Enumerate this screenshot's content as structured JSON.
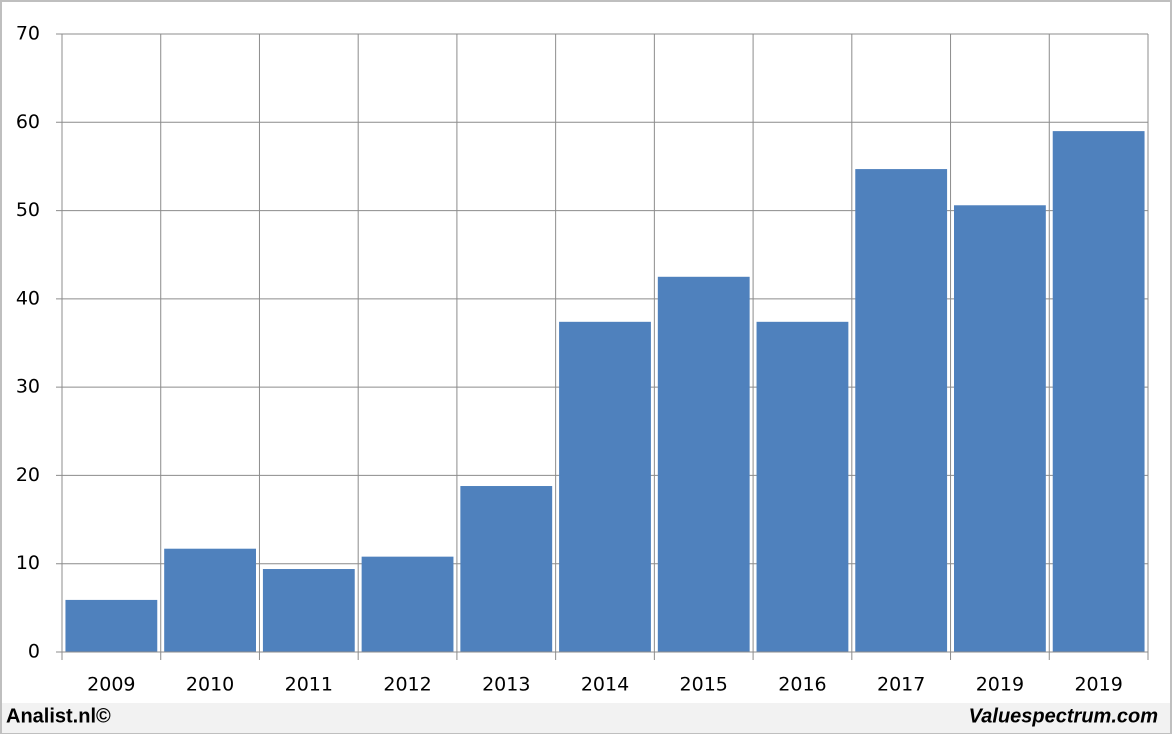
{
  "chart_data": {
    "type": "bar",
    "categories": [
      "2009",
      "2010",
      "2011",
      "2012",
      "2013",
      "2014",
      "2015",
      "2016",
      "2017",
      "2019",
      "2019"
    ],
    "values": [
      5.9,
      11.7,
      9.4,
      10.8,
      18.8,
      37.4,
      42.5,
      37.4,
      54.7,
      50.6,
      59.0
    ],
    "color": "#4f81bd",
    "ylim": [
      0,
      70
    ],
    "yticks": [
      0,
      10,
      20,
      30,
      40,
      50,
      60,
      70
    ],
    "grid": true,
    "footer_left": "Analist.nl©",
    "footer_right": "Valuespectrum.com"
  }
}
